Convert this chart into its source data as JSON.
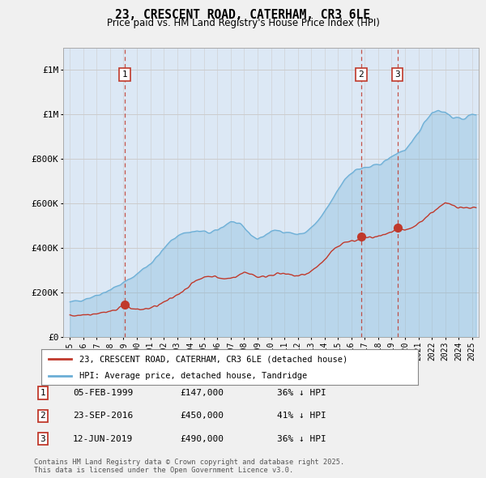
{
  "title": "23, CRESCENT ROAD, CATERHAM, CR3 6LE",
  "subtitle": "Price paid vs. HM Land Registry's House Price Index (HPI)",
  "hpi_label": "HPI: Average price, detached house, Tandridge",
  "price_label": "23, CRESCENT ROAD, CATERHAM, CR3 6LE (detached house)",
  "sales": [
    {
      "num": 1,
      "date_x": 1999.09,
      "price": 147000,
      "label": "05-FEB-1999",
      "pct": "36% ↓ HPI"
    },
    {
      "num": 2,
      "date_x": 2016.73,
      "price": 450000,
      "label": "23-SEP-2016",
      "pct": "41% ↓ HPI"
    },
    {
      "num": 3,
      "date_x": 2019.44,
      "price": 490000,
      "label": "12-JUN-2019",
      "pct": "36% ↓ HPI"
    }
  ],
  "hpi_color": "#6aaed6",
  "hpi_fill": "#daeaf7",
  "price_color": "#c0392b",
  "vline_color": "#c0392b",
  "ylim": [
    0,
    1300000
  ],
  "yticks": [
    0,
    200000,
    400000,
    600000,
    800000,
    1000000,
    1200000
  ],
  "xlim": [
    1994.5,
    2025.5
  ],
  "footer": "Contains HM Land Registry data © Crown copyright and database right 2025.\nThis data is licensed under the Open Government Licence v3.0.",
  "bg_color": "#f0f0f0",
  "plot_bg": "#dce8f5"
}
